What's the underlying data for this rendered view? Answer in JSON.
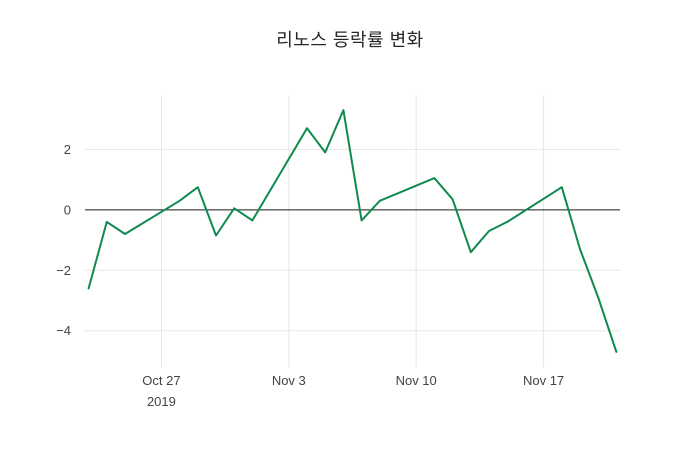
{
  "chart_data": {
    "type": "line",
    "title": "리노스 등락률 변화",
    "grid_color": "#e6e6e6",
    "tick_color": "#444444",
    "background_color": "#ffffff",
    "zero_line": {
      "value": 0,
      "color": "#1a1a1a"
    },
    "x_axis": {
      "lim": [
        -0.2,
        29.2
      ],
      "ticks": [
        {
          "label": "Oct 27",
          "sublabel": "2019",
          "day": 4
        },
        {
          "label": "Nov 3",
          "day": 11
        },
        {
          "label": "Nov 10",
          "day": 18
        },
        {
          "label": "Nov 17",
          "day": 25
        }
      ]
    },
    "y_axis": {
      "lim": [
        -5.2,
        3.8
      ],
      "ticks": [
        {
          "label": "2",
          "value": 2
        },
        {
          "label": "0",
          "value": 0
        },
        {
          "label": "−2",
          "value": -2
        },
        {
          "label": "−4",
          "value": -4
        }
      ]
    },
    "series": [
      {
        "name": "등락률",
        "color": "#0e8a4f",
        "x_dates": [
          "2019-10-23",
          "2019-10-24",
          "2019-10-25",
          "2019-10-28",
          "2019-10-29",
          "2019-10-30",
          "2019-10-31",
          "2019-11-01",
          "2019-11-04",
          "2019-11-05",
          "2019-11-06",
          "2019-11-07",
          "2019-11-08",
          "2019-11-11",
          "2019-11-12",
          "2019-11-13",
          "2019-11-14",
          "2019-11-15",
          "2019-11-18",
          "2019-11-19",
          "2019-11-20",
          "2019-11-21"
        ],
        "x_days": [
          0,
          1,
          2,
          5,
          6,
          7,
          8,
          9,
          12,
          13,
          14,
          15,
          16,
          19,
          20,
          21,
          22,
          23,
          26,
          27,
          28,
          29
        ],
        "values": [
          -2.6,
          -0.4,
          -0.8,
          0.3,
          0.75,
          -0.85,
          0.05,
          -0.35,
          2.7,
          1.9,
          3.3,
          -0.35,
          0.3,
          1.05,
          0.35,
          -1.4,
          -0.7,
          -0.4,
          0.75,
          -1.3,
          -2.9,
          -4.7
        ]
      }
    ]
  }
}
